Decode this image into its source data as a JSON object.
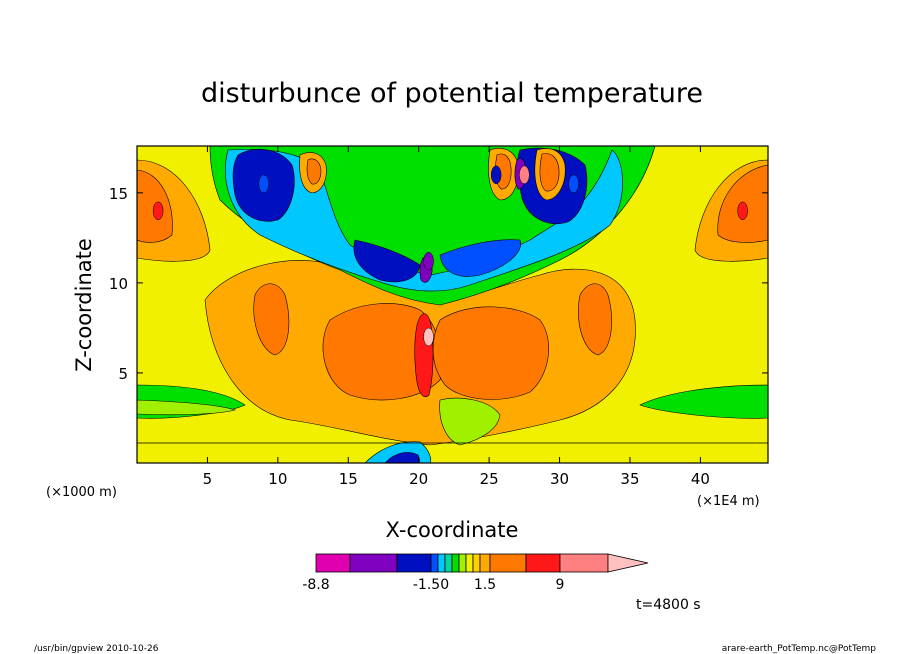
{
  "chart_data": {
    "type": "heatmap",
    "title": "disturbunce of potential temperature",
    "xlabel": "X-coordinate",
    "ylabel": "Z-coordinate",
    "x_scale_note": "(×1000 m)",
    "x_unit_note": "(×1E4 m)",
    "xlim": [
      0,
      44.8
    ],
    "ylim": [
      0,
      17.6
    ],
    "x_ticks": [
      5,
      10,
      15,
      20,
      25,
      30,
      35,
      40
    ],
    "y_ticks": [
      5,
      10,
      15
    ],
    "colorbar": {
      "levels": [
        -8.8,
        -7.2,
        -5.4,
        -3.6,
        -1.5,
        -1.0,
        -0.6,
        -0.3,
        0.3,
        0.6,
        1.0,
        1.5,
        3.6,
        6.3,
        9
      ],
      "colors": [
        "#e000b0",
        "#8000c0",
        "#0010c0",
        "#0050ff",
        "#00c8ff",
        "#00d8a0",
        "#00e000",
        "#a0f000",
        "#f0f000",
        "#ffd000",
        "#ffaa00",
        "#ff7800",
        "#ff1818",
        "#ff8080",
        "#ffc0c0"
      ],
      "labels": [
        "-8.8",
        "-1.50",
        "1.5",
        "9"
      ]
    },
    "features": [
      {
        "x": 20.7,
        "z": 7.0,
        "value": 9
      },
      {
        "x": 20.7,
        "z": 11.2,
        "value": -7.2
      },
      {
        "x": 9.0,
        "z": 15.5,
        "value": -3.6
      },
      {
        "x": 31.0,
        "z": 15.5,
        "value": -3.6
      },
      {
        "x": 1.5,
        "z": 14.0,
        "value": 3.6
      },
      {
        "x": 43.0,
        "z": 14.0,
        "value": 3.6
      },
      {
        "x": 25.5,
        "z": 16.0,
        "value": -5.4
      },
      {
        "x": 27.5,
        "z": 16.0,
        "value": 6.3
      }
    ],
    "annotation": "t=4800 s"
  },
  "footer": {
    "left": "/usr/bin/gpview   2010-10-26",
    "right": "arare-earth_PotTemp.nc@PotTemp"
  },
  "colors": {
    "background": "#f0f000",
    "frame": "#000000"
  }
}
